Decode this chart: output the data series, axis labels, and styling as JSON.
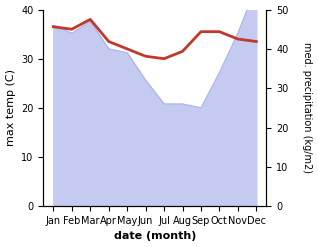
{
  "months": [
    "Jan",
    "Feb",
    "Mar",
    "Apr",
    "May",
    "Jun",
    "Jul",
    "Aug",
    "Sep",
    "Oct",
    "Nov",
    "Dec"
  ],
  "temp_max": [
    36.5,
    36.0,
    38.0,
    33.5,
    32.0,
    30.5,
    30.0,
    31.5,
    35.5,
    35.5,
    34.0,
    33.5
  ],
  "precipitation_right": [
    46,
    44,
    47,
    40,
    39,
    32,
    26,
    26,
    25,
    34,
    44,
    56
  ],
  "temp_color": "#c0392b",
  "precip_fill_color": "#c5caf0",
  "precip_line_color": "#aab4e8",
  "temp_linewidth": 2.0,
  "precip_linewidth": 0.8,
  "xlabel": "date (month)",
  "ylabel_left": "max temp (C)",
  "ylabel_right": "med. precipitation (kg/m2)",
  "ylim_left": [
    0,
    40
  ],
  "ylim_right": [
    0,
    50
  ],
  "yticks_left": [
    0,
    10,
    20,
    30,
    40
  ],
  "yticks_right": [
    0,
    10,
    20,
    30,
    40,
    50
  ],
  "bg_color": "#ffffff"
}
